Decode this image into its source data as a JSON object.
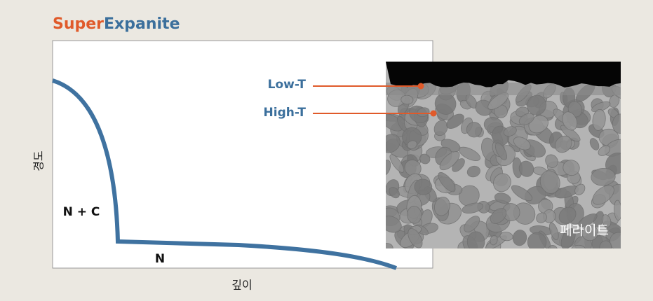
{
  "title": {
    "part1": "Super",
    "part2": "Expanite"
  },
  "axes": {
    "y_label": "경도",
    "x_label": "깊이"
  },
  "regions": [
    {
      "label": "N + C"
    },
    {
      "label": "N"
    }
  ],
  "image": {
    "annotations": [
      {
        "label": "Low-T"
      },
      {
        "label": "High-T"
      }
    ],
    "caption": "페라이트"
  }
}
